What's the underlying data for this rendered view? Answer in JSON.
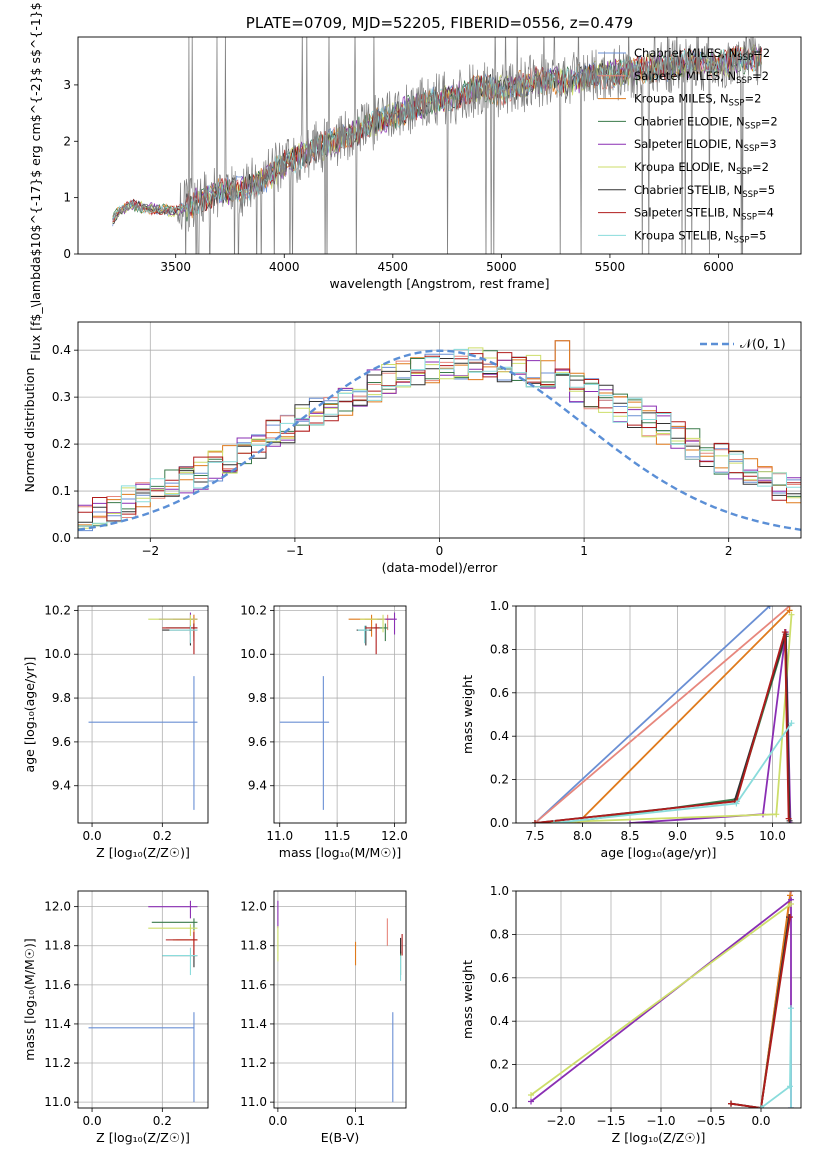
{
  "colors": {
    "Chabrier MILES": "#6a8fd4",
    "Salpeter MILES": "#e7877d",
    "Kroupa MILES": "#df7a1c",
    "Chabrier ELODIE": "#3a7a4a",
    "Salpeter ELODIE": "#8a2fb3",
    "Kroupa ELODIE": "#cdde6a",
    "Chabrier STELIB": "#333333",
    "Salpeter STELIB": "#b01c1c",
    "Kroupa STELIB": "#8adcdc",
    "data": "#808080",
    "normal": "#5b8fd6"
  },
  "chart_data": [
    {
      "id": "spectrum",
      "type": "line",
      "title": "PLATE=0709, MJD=52205, FIBERID=0556, z=0.479",
      "xlabel": "wavelength [Angstrom, rest frame]",
      "ylabel": "Flux [f$_\\lambda$10$^{-17}$ erg cm$^{-2}$ s$^{-1}$ A$^{-1}$]",
      "xlim": [
        3050,
        6380
      ],
      "ylim": [
        0,
        3.85
      ],
      "xticks": [
        3500,
        4000,
        4500,
        5000,
        5500,
        6000
      ],
      "yticks": [
        0,
        1,
        2,
        3
      ],
      "grid": false,
      "legend_position": "top-right",
      "legend": [
        {
          "name": "Chabrier MILES",
          "nssp": "2"
        },
        {
          "name": "Salpeter MILES",
          "nssp": "2"
        },
        {
          "name": "Kroupa MILES",
          "nssp": "2"
        },
        {
          "name": "Chabrier ELODIE",
          "nssp": "2"
        },
        {
          "name": "Salpeter ELODIE",
          "nssp": "3"
        },
        {
          "name": "Kroupa ELODIE",
          "nssp": "2"
        },
        {
          "name": "Chabrier STELIB",
          "nssp": "5"
        },
        {
          "name": "Salpeter STELIB",
          "nssp": "4"
        },
        {
          "name": "Kroupa STELIB",
          "nssp": "5"
        }
      ],
      "continuum_x": [
        3210,
        3230,
        3260,
        3300,
        3350,
        3400,
        3450,
        3500,
        3600,
        3700,
        3800,
        3900,
        4000,
        4100,
        4200,
        4300,
        4400,
        4500,
        4600,
        4700,
        4800,
        4900,
        5000,
        5100,
        5200,
        5300,
        5400,
        5500,
        5600,
        5700,
        5800,
        5900,
        6000,
        6100,
        6200
      ],
      "continuum_y": [
        0.6,
        0.72,
        0.8,
        0.88,
        0.82,
        0.8,
        0.78,
        0.75,
        0.95,
        1.1,
        1.15,
        1.3,
        1.6,
        1.8,
        1.95,
        2.1,
        2.3,
        2.45,
        2.6,
        2.72,
        2.8,
        2.95,
        2.9,
        3.0,
        3.1,
        3.05,
        3.15,
        3.2,
        3.25,
        3.3,
        3.35,
        3.4,
        3.35,
        3.45,
        3.5
      ]
    },
    {
      "id": "residuals",
      "type": "histogram",
      "xlabel": "(data-model)/error",
      "ylabel": "Normed distribution",
      "xlim": [
        -2.5,
        2.5
      ],
      "ylim": [
        0,
        0.46
      ],
      "xticks": [
        -2,
        -1,
        0,
        1,
        2
      ],
      "yticks": [
        0.0,
        0.1,
        0.2,
        0.3,
        0.4
      ],
      "grid": true,
      "legend_position": "top-right",
      "legend": [
        {
          "name": "𝒩(0, 1)"
        }
      ],
      "bin_width": 0.1
    },
    {
      "id": "Z_vs_age",
      "type": "errorbar",
      "xlabel": "Z [log₁₀(Z/Z☉)]",
      "ylabel": "age  [log₁₀(age/yr)]",
      "xlim": [
        -0.04,
        0.33
      ],
      "ylim": [
        9.23,
        10.22
      ],
      "xticks": [
        0.0,
        0.2
      ],
      "yticks": [
        9.4,
        9.6,
        9.8,
        10.0,
        10.2
      ],
      "grid": true,
      "points": [
        {
          "series": "Chabrier MILES",
          "x": 0.29,
          "y": 9.69,
          "xerr": [
            0.3,
            0.01
          ],
          "yerr": [
            0.4,
            0.21
          ]
        },
        {
          "series": "Salpeter MILES",
          "x": 0.29,
          "y": 10.16,
          "xerr": [
            0.04,
            0.01
          ],
          "yerr": [
            0.05,
            0.02
          ]
        },
        {
          "series": "Kroupa MILES",
          "x": 0.29,
          "y": 10.16,
          "xerr": [
            0.06,
            0.01
          ],
          "yerr": [
            0.08,
            0.02
          ]
        },
        {
          "series": "Chabrier ELODIE",
          "x": 0.29,
          "y": 10.12,
          "xerr": [
            0.08,
            0.01
          ],
          "yerr": [
            0.06,
            0.02
          ]
        },
        {
          "series": "Salpeter ELODIE",
          "x": 0.28,
          "y": 10.16,
          "xerr": [
            0.09,
            0.02
          ],
          "yerr": [
            0.07,
            0.03
          ]
        },
        {
          "series": "Kroupa ELODIE",
          "x": 0.28,
          "y": 10.16,
          "xerr": [
            0.12,
            0.02
          ],
          "yerr": [
            0.06,
            0.02
          ]
        },
        {
          "series": "Chabrier STELIB",
          "x": 0.28,
          "y": 10.11,
          "xerr": [
            0.08,
            0.02
          ],
          "yerr": [
            0.07,
            0.02
          ]
        },
        {
          "series": "Salpeter STELIB",
          "x": 0.29,
          "y": 10.12,
          "xerr": [
            0.09,
            0.01
          ],
          "yerr": [
            0.12,
            0.02
          ]
        },
        {
          "series": "Kroupa STELIB",
          "x": 0.28,
          "y": 10.11,
          "xerr": [
            0.06,
            0.02
          ],
          "yerr": [
            0.06,
            0.02
          ]
        }
      ]
    },
    {
      "id": "mass_vs_age",
      "type": "errorbar",
      "xlabel": "mass [log₁₀(M/M☉)]",
      "ylabel": "",
      "xlim": [
        10.95,
        12.1
      ],
      "ylim": [
        9.23,
        10.22
      ],
      "xticks": [
        11.0,
        11.5,
        12.0
      ],
      "yticks": [
        9.4,
        9.6,
        9.8,
        10.0,
        10.2
      ],
      "grid": true,
      "points": [
        {
          "series": "Chabrier MILES",
          "x": 11.38,
          "y": 9.69,
          "xerr": [
            0.38,
            0.05
          ],
          "yerr": [
            0.4,
            0.21
          ]
        },
        {
          "series": "Salpeter MILES",
          "x": 11.94,
          "y": 10.16,
          "xerr": [
            0.2,
            0.05
          ],
          "yerr": [
            0.05,
            0.02
          ]
        },
        {
          "series": "Kroupa MILES",
          "x": 11.8,
          "y": 10.16,
          "xerr": [
            0.2,
            0.1
          ],
          "yerr": [
            0.08,
            0.02
          ]
        },
        {
          "series": "Chabrier ELODIE",
          "x": 11.92,
          "y": 10.12,
          "xerr": [
            0.1,
            0.02
          ],
          "yerr": [
            0.06,
            0.02
          ]
        },
        {
          "series": "Salpeter ELODIE",
          "x": 12.0,
          "y": 10.16,
          "xerr": [
            0.15,
            0.02
          ],
          "yerr": [
            0.07,
            0.03
          ]
        },
        {
          "series": "Kroupa ELODIE",
          "x": 11.9,
          "y": 10.16,
          "xerr": [
            0.2,
            0.02
          ],
          "yerr": [
            0.06,
            0.02
          ]
        },
        {
          "series": "Chabrier STELIB",
          "x": 11.75,
          "y": 10.11,
          "xerr": [
            0.08,
            0.05
          ],
          "yerr": [
            0.07,
            0.02
          ]
        },
        {
          "series": "Salpeter STELIB",
          "x": 11.84,
          "y": 10.12,
          "xerr": [
            0.1,
            0.03
          ],
          "yerr": [
            0.12,
            0.02
          ]
        },
        {
          "series": "Kroupa STELIB",
          "x": 11.74,
          "y": 10.11,
          "xerr": [
            0.06,
            0.04
          ],
          "yerr": [
            0.06,
            0.02
          ]
        }
      ]
    },
    {
      "id": "age_vs_weight",
      "type": "line",
      "xlabel": "age  [log₁₀(age/yr)]",
      "ylabel": "mass weight",
      "xlim": [
        7.3,
        10.3
      ],
      "ylim": [
        0,
        1
      ],
      "xticks": [
        7.5,
        8.0,
        8.5,
        9.0,
        9.5,
        10.0
      ],
      "yticks": [
        0.0,
        0.2,
        0.4,
        0.6,
        0.8,
        1.0
      ],
      "grid": true,
      "series": [
        {
          "name": "Chabrier MILES",
          "x": [
            7.5,
            9.97
          ],
          "y": [
            0.0,
            1.0
          ]
        },
        {
          "name": "Salpeter MILES",
          "x": [
            7.5,
            10.18
          ],
          "y": [
            0.0,
            1.0
          ]
        },
        {
          "name": "Kroupa MILES",
          "x": [
            7.95,
            10.18
          ],
          "y": [
            0.0,
            0.98
          ]
        },
        {
          "name": "Chabrier ELODIE",
          "x": [
            7.8,
            9.62,
            10.14,
            10.18
          ],
          "y": [
            0.0,
            0.11,
            0.86,
            0.0
          ]
        },
        {
          "name": "Salpeter ELODIE",
          "x": [
            8.5,
            9.9,
            10.14,
            10.19
          ],
          "y": [
            0.0,
            0.04,
            0.88,
            0.0
          ]
        },
        {
          "name": "Kroupa ELODIE",
          "x": [
            7.5,
            10.04,
            10.2
          ],
          "y": [
            0.0,
            0.04,
            0.96
          ]
        },
        {
          "name": "Chabrier STELIB",
          "x": [
            7.5,
            9.6,
            10.14,
            10.18
          ],
          "y": [
            0.0,
            0.1,
            0.87,
            0.01
          ]
        },
        {
          "name": "Salpeter STELIB",
          "x": [
            7.5,
            9.62,
            10.13,
            10.17
          ],
          "y": [
            0.0,
            0.1,
            0.88,
            0.02
          ]
        },
        {
          "name": "Kroupa STELIB",
          "x": [
            7.7,
            9.62,
            10.2
          ],
          "y": [
            0.0,
            0.09,
            0.46
          ]
        }
      ]
    },
    {
      "id": "Z_vs_mass",
      "type": "errorbar",
      "xlabel": "Z [log₁₀(Z/Z☉)]",
      "ylabel": "mass [log₁₀(M/M☉)]",
      "xlim": [
        -0.04,
        0.33
      ],
      "ylim": [
        10.97,
        12.08
      ],
      "xticks": [
        0.0,
        0.2
      ],
      "yticks": [
        11.0,
        11.2,
        11.4,
        11.6,
        11.8,
        12.0
      ],
      "grid": true,
      "points": [
        {
          "series": "Chabrier MILES",
          "x": 0.29,
          "y": 11.38,
          "xerr": [
            0.3,
            0.0
          ],
          "yerr": [
            0.38,
            0.08
          ]
        },
        {
          "series": "Salpeter MILES",
          "x": 0.29,
          "y": 11.83,
          "xerr": [
            0.05,
            0.01
          ],
          "yerr": [
            0.08,
            0.04
          ]
        },
        {
          "series": "Kroupa MILES",
          "x": 0.29,
          "y": 11.83,
          "xerr": [
            0.06,
            0.01
          ],
          "yerr": [
            0.05,
            0.05
          ]
        },
        {
          "series": "Chabrier ELODIE",
          "x": 0.29,
          "y": 11.92,
          "xerr": [
            0.12,
            0.01
          ],
          "yerr": [
            0.04,
            0.02
          ]
        },
        {
          "series": "Salpeter ELODIE",
          "x": 0.28,
          "y": 12.0,
          "xerr": [
            0.12,
            0.02
          ],
          "yerr": [
            0.06,
            0.03
          ]
        },
        {
          "series": "Kroupa ELODIE",
          "x": 0.28,
          "y": 11.89,
          "xerr": [
            0.12,
            0.02
          ],
          "yerr": [
            0.04,
            0.02
          ]
        },
        {
          "series": "Chabrier STELIB",
          "x": 0.29,
          "y": 11.75,
          "xerr": [
            0.09,
            0.01
          ],
          "yerr": [
            0.06,
            0.03
          ]
        },
        {
          "series": "Salpeter STELIB",
          "x": 0.29,
          "y": 11.83,
          "xerr": [
            0.08,
            0.01
          ],
          "yerr": [
            0.08,
            0.04
          ]
        },
        {
          "series": "Kroupa STELIB",
          "x": 0.28,
          "y": 11.75,
          "xerr": [
            0.08,
            0.02
          ],
          "yerr": [
            0.1,
            0.04
          ]
        }
      ]
    },
    {
      "id": "EBV_vs_mass",
      "type": "errorbar",
      "xlabel": "E(B-V)",
      "ylabel": "",
      "xlim": [
        -0.005,
        0.165
      ],
      "ylim": [
        10.97,
        12.08
      ],
      "xticks": [
        0.0,
        0.1
      ],
      "yticks": [
        11.0,
        11.2,
        11.4,
        11.6,
        11.8,
        12.0
      ],
      "grid": true,
      "points": [
        {
          "series": "Chabrier MILES",
          "x": 0.148,
          "y": 11.2,
          "xerr": [
            0,
            0
          ],
          "yerr": [
            0.2,
            0.26
          ]
        },
        {
          "series": "Salpeter MILES",
          "x": 0.141,
          "y": 11.85,
          "xerr": [
            0,
            0
          ],
          "yerr": [
            0.05,
            0.09
          ]
        },
        {
          "series": "Kroupa MILES",
          "x": 0.1,
          "y": 11.75,
          "xerr": [
            0,
            0
          ],
          "yerr": [
            0.05,
            0.07
          ]
        },
        {
          "series": "Chabrier ELODIE",
          "x": 0.158,
          "y": 11.7,
          "xerr": [
            0,
            0
          ],
          "yerr": [
            0.05,
            0.07
          ]
        },
        {
          "series": "Salpeter ELODIE",
          "x": 0.0,
          "y": 11.95,
          "xerr": [
            0,
            0
          ],
          "yerr": [
            0.06,
            0.08
          ]
        },
        {
          "series": "Kroupa ELODIE",
          "x": 0.0,
          "y": 11.82,
          "xerr": [
            0,
            0
          ],
          "yerr": [
            0.1,
            0.08
          ]
        },
        {
          "series": "Chabrier STELIB",
          "x": 0.158,
          "y": 11.8,
          "xerr": [
            0,
            0
          ],
          "yerr": [
            0.04,
            0.04
          ]
        },
        {
          "series": "Salpeter STELIB",
          "x": 0.16,
          "y": 11.8,
          "xerr": [
            0,
            0
          ],
          "yerr": [
            0.05,
            0.06
          ]
        },
        {
          "series": "Kroupa STELIB",
          "x": 0.158,
          "y": 11.7,
          "xerr": [
            0,
            0
          ],
          "yerr": [
            0.08,
            0.05
          ]
        }
      ]
    },
    {
      "id": "Z_vs_weight",
      "type": "line",
      "xlabel": "Z [log₁₀(Z/Z☉)]",
      "ylabel": "mass weight",
      "xlim": [
        -2.45,
        0.4
      ],
      "ylim": [
        0,
        1
      ],
      "xticks": [
        -2.0,
        -1.5,
        -1.0,
        -0.5,
        0.0
      ],
      "yticks": [
        0.0,
        0.2,
        0.4,
        0.6,
        0.8,
        1.0
      ],
      "grid": true,
      "series": [
        {
          "name": "Chabrier MILES",
          "x": [
            0.0,
            0.3
          ],
          "y": [
            0.0,
            1.0
          ]
        },
        {
          "name": "Salpeter MILES",
          "x": [
            0.0,
            0.3
          ],
          "y": [
            0.0,
            1.0
          ]
        },
        {
          "name": "Kroupa MILES",
          "x": [
            0.0,
            0.29
          ],
          "y": [
            0.0,
            0.98
          ]
        },
        {
          "name": "Chabrier ELODIE",
          "x": [
            -0.3,
            0.0,
            0.28
          ],
          "y": [
            0.02,
            0.0,
            0.88
          ]
        },
        {
          "name": "Salpeter ELODIE",
          "x": [
            -2.3,
            0.3,
            0.3
          ],
          "y": [
            0.03,
            0.96,
            0.0
          ]
        },
        {
          "name": "Kroupa ELODIE",
          "x": [
            -2.3,
            0.3
          ],
          "y": [
            0.06,
            0.94
          ]
        },
        {
          "name": "Chabrier STELIB",
          "x": [
            -0.3,
            0.0,
            0.28
          ],
          "y": [
            0.02,
            0.0,
            0.88
          ]
        },
        {
          "name": "Salpeter STELIB",
          "x": [
            -0.3,
            0.0,
            0.29
          ],
          "y": [
            0.02,
            0.0,
            0.88
          ]
        },
        {
          "name": "Kroupa STELIB",
          "x": [
            0.0,
            0.29,
            0.3,
            0.3
          ],
          "y": [
            0.0,
            0.1,
            0.46,
            0.0
          ]
        }
      ]
    }
  ]
}
